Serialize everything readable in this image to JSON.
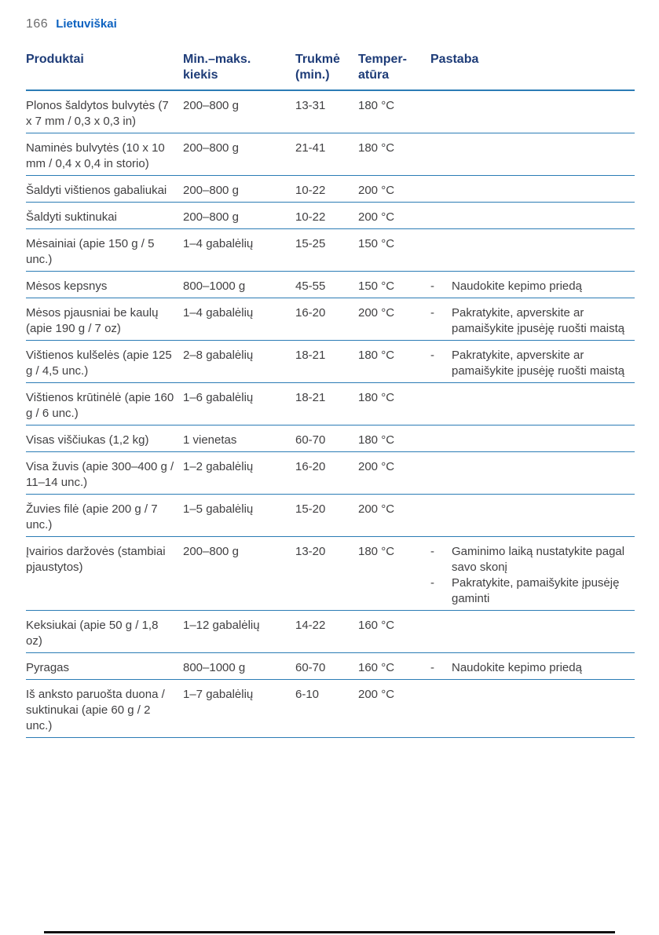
{
  "page": {
    "number": "166",
    "language_label": "Lietuviškai"
  },
  "table": {
    "columns": [
      {
        "label": "Produktai"
      },
      {
        "label": "Min.–maks.\nkiekis"
      },
      {
        "label": "Trukmė\n(min.)"
      },
      {
        "label": "Temper-\natūra"
      },
      {
        "label": "Pastaba"
      }
    ],
    "rows": [
      {
        "product": "Plonos šaldytos bulvytės (7 x 7 mm / 0,3 x 0,3 in)",
        "quantity": "200–800 g",
        "time": "13-31",
        "temperature": "180 °C",
        "notes": []
      },
      {
        "product": "Naminės bulvytės (10 x 10 mm / 0,4 x 0,4 in storio)",
        "quantity": "200–800 g",
        "time": "21-41",
        "temperature": "180 °C",
        "notes": []
      },
      {
        "product": "Šaldyti vištienos gabaliukai",
        "quantity": "200–800 g",
        "time": "10-22",
        "temperature": "200 °C",
        "notes": []
      },
      {
        "product": "Šaldyti suktinukai",
        "quantity": "200–800 g",
        "time": "10-22",
        "temperature": "200 °C",
        "notes": []
      },
      {
        "product": "Mėsainiai (apie 150 g / 5 unc.)",
        "quantity": "1–4 gabalėlių",
        "time": "15-25",
        "temperature": "150 °C",
        "notes": []
      },
      {
        "product": "Mėsos kepsnys",
        "quantity": "800–1000 g",
        "time": "45-55",
        "temperature": "150 °C",
        "notes": [
          "Naudokite kepimo priedą"
        ]
      },
      {
        "product": "Mėsos pjausniai be kaulų (apie 190 g / 7 oz)",
        "quantity": "1–4 gabalėlių",
        "time": "16-20",
        "temperature": "200 °C",
        "notes": [
          "Pakratykite, apverskite ar pamaišykite įpusėję ruošti maistą"
        ]
      },
      {
        "product": "Vištienos kulšelės (apie 125 g / 4,5 unc.)",
        "quantity": "2–8 gabalėlių",
        "time": "18-21",
        "temperature": "180 °C",
        "notes": [
          "Pakratykite, apverskite ar pamaišykite įpusėję ruošti maistą"
        ]
      },
      {
        "product": "Vištienos krūtinėlė (apie 160 g / 6 unc.)",
        "quantity": "1–6 gabalėlių",
        "time": "18-21",
        "temperature": "180 °C",
        "notes": []
      },
      {
        "product": "Visas viščiukas (1,2 kg)",
        "quantity": "1 vienetas",
        "time": "60-70",
        "temperature": "180 °C",
        "notes": []
      },
      {
        "product": "Visa žuvis (apie 300–400 g / 11–14 unc.)",
        "quantity": "1–2 gabalėlių",
        "time": "16-20",
        "temperature": "200 °C",
        "notes": []
      },
      {
        "product": "Žuvies filė (apie 200 g / 7 unc.)",
        "quantity": "1–5 gabalėlių",
        "time": "15-20",
        "temperature": "200 °C",
        "notes": []
      },
      {
        "product": "Įvairios daržovės (stambiai pjaustytos)",
        "quantity": "200–800 g",
        "time": "13-20",
        "temperature": "180 °C",
        "notes": [
          "Gaminimo laiką nustatykite pagal savo skonį",
          "Pakratykite, pamaišykite įpusėję gaminti"
        ]
      },
      {
        "product": "Keksiukai (apie 50 g / 1,8 oz)",
        "quantity": "1–12 gabalėlių",
        "time": "14-22",
        "temperature": "160 °C",
        "notes": []
      },
      {
        "product": "Pyragas",
        "quantity": "800–1000 g",
        "time": "60-70",
        "temperature": "160 °C",
        "notes": [
          "Naudokite kepimo priedą"
        ]
      },
      {
        "product": "Iš anksto paruošta duona / suktinukai (apie 60 g / 2 unc.)",
        "quantity": "1–7 gabalėlių",
        "time": "6-10",
        "temperature": "200 °C",
        "notes": []
      }
    ]
  },
  "colors": {
    "header_text": "#1e3c78",
    "divider": "#2b7cb5",
    "body_text": "#414042",
    "language_label": "#0d62c0",
    "page_number": "#6c6c6d",
    "bottom_bar": "#111111"
  }
}
